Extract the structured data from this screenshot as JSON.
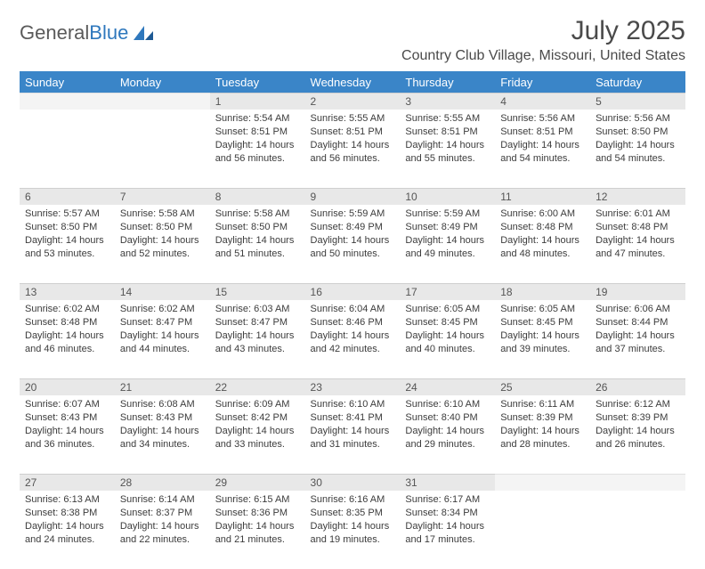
{
  "logo": {
    "text1": "General",
    "text2": "Blue"
  },
  "title": "July 2025",
  "location": "Country Club Village, Missouri, United States",
  "colors": {
    "header_bg": "#3a85c8",
    "header_text": "#ffffff",
    "daynum_bg": "#e8e8e8",
    "daynum_empty_bg": "#f4f4f4",
    "body_text": "#3c3c3c",
    "title_text": "#4a4a4a",
    "logo_gray": "#5a5a5a",
    "logo_blue": "#2f78bd"
  },
  "typography": {
    "title_fontsize": 30,
    "location_fontsize": 16,
    "header_fontsize": 13,
    "daynum_fontsize": 12,
    "cell_fontsize": 11
  },
  "weekdays": [
    "Sunday",
    "Monday",
    "Tuesday",
    "Wednesday",
    "Thursday",
    "Friday",
    "Saturday"
  ],
  "weeks": [
    [
      {
        "day": "",
        "sunrise": "",
        "sunset": "",
        "daylight": ""
      },
      {
        "day": "",
        "sunrise": "",
        "sunset": "",
        "daylight": ""
      },
      {
        "day": "1",
        "sunrise": "Sunrise: 5:54 AM",
        "sunset": "Sunset: 8:51 PM",
        "daylight": "Daylight: 14 hours and 56 minutes."
      },
      {
        "day": "2",
        "sunrise": "Sunrise: 5:55 AM",
        "sunset": "Sunset: 8:51 PM",
        "daylight": "Daylight: 14 hours and 56 minutes."
      },
      {
        "day": "3",
        "sunrise": "Sunrise: 5:55 AM",
        "sunset": "Sunset: 8:51 PM",
        "daylight": "Daylight: 14 hours and 55 minutes."
      },
      {
        "day": "4",
        "sunrise": "Sunrise: 5:56 AM",
        "sunset": "Sunset: 8:51 PM",
        "daylight": "Daylight: 14 hours and 54 minutes."
      },
      {
        "day": "5",
        "sunrise": "Sunrise: 5:56 AM",
        "sunset": "Sunset: 8:50 PM",
        "daylight": "Daylight: 14 hours and 54 minutes."
      }
    ],
    [
      {
        "day": "6",
        "sunrise": "Sunrise: 5:57 AM",
        "sunset": "Sunset: 8:50 PM",
        "daylight": "Daylight: 14 hours and 53 minutes."
      },
      {
        "day": "7",
        "sunrise": "Sunrise: 5:58 AM",
        "sunset": "Sunset: 8:50 PM",
        "daylight": "Daylight: 14 hours and 52 minutes."
      },
      {
        "day": "8",
        "sunrise": "Sunrise: 5:58 AM",
        "sunset": "Sunset: 8:50 PM",
        "daylight": "Daylight: 14 hours and 51 minutes."
      },
      {
        "day": "9",
        "sunrise": "Sunrise: 5:59 AM",
        "sunset": "Sunset: 8:49 PM",
        "daylight": "Daylight: 14 hours and 50 minutes."
      },
      {
        "day": "10",
        "sunrise": "Sunrise: 5:59 AM",
        "sunset": "Sunset: 8:49 PM",
        "daylight": "Daylight: 14 hours and 49 minutes."
      },
      {
        "day": "11",
        "sunrise": "Sunrise: 6:00 AM",
        "sunset": "Sunset: 8:48 PM",
        "daylight": "Daylight: 14 hours and 48 minutes."
      },
      {
        "day": "12",
        "sunrise": "Sunrise: 6:01 AM",
        "sunset": "Sunset: 8:48 PM",
        "daylight": "Daylight: 14 hours and 47 minutes."
      }
    ],
    [
      {
        "day": "13",
        "sunrise": "Sunrise: 6:02 AM",
        "sunset": "Sunset: 8:48 PM",
        "daylight": "Daylight: 14 hours and 46 minutes."
      },
      {
        "day": "14",
        "sunrise": "Sunrise: 6:02 AM",
        "sunset": "Sunset: 8:47 PM",
        "daylight": "Daylight: 14 hours and 44 minutes."
      },
      {
        "day": "15",
        "sunrise": "Sunrise: 6:03 AM",
        "sunset": "Sunset: 8:47 PM",
        "daylight": "Daylight: 14 hours and 43 minutes."
      },
      {
        "day": "16",
        "sunrise": "Sunrise: 6:04 AM",
        "sunset": "Sunset: 8:46 PM",
        "daylight": "Daylight: 14 hours and 42 minutes."
      },
      {
        "day": "17",
        "sunrise": "Sunrise: 6:05 AM",
        "sunset": "Sunset: 8:45 PM",
        "daylight": "Daylight: 14 hours and 40 minutes."
      },
      {
        "day": "18",
        "sunrise": "Sunrise: 6:05 AM",
        "sunset": "Sunset: 8:45 PM",
        "daylight": "Daylight: 14 hours and 39 minutes."
      },
      {
        "day": "19",
        "sunrise": "Sunrise: 6:06 AM",
        "sunset": "Sunset: 8:44 PM",
        "daylight": "Daylight: 14 hours and 37 minutes."
      }
    ],
    [
      {
        "day": "20",
        "sunrise": "Sunrise: 6:07 AM",
        "sunset": "Sunset: 8:43 PM",
        "daylight": "Daylight: 14 hours and 36 minutes."
      },
      {
        "day": "21",
        "sunrise": "Sunrise: 6:08 AM",
        "sunset": "Sunset: 8:43 PM",
        "daylight": "Daylight: 14 hours and 34 minutes."
      },
      {
        "day": "22",
        "sunrise": "Sunrise: 6:09 AM",
        "sunset": "Sunset: 8:42 PM",
        "daylight": "Daylight: 14 hours and 33 minutes."
      },
      {
        "day": "23",
        "sunrise": "Sunrise: 6:10 AM",
        "sunset": "Sunset: 8:41 PM",
        "daylight": "Daylight: 14 hours and 31 minutes."
      },
      {
        "day": "24",
        "sunrise": "Sunrise: 6:10 AM",
        "sunset": "Sunset: 8:40 PM",
        "daylight": "Daylight: 14 hours and 29 minutes."
      },
      {
        "day": "25",
        "sunrise": "Sunrise: 6:11 AM",
        "sunset": "Sunset: 8:39 PM",
        "daylight": "Daylight: 14 hours and 28 minutes."
      },
      {
        "day": "26",
        "sunrise": "Sunrise: 6:12 AM",
        "sunset": "Sunset: 8:39 PM",
        "daylight": "Daylight: 14 hours and 26 minutes."
      }
    ],
    [
      {
        "day": "27",
        "sunrise": "Sunrise: 6:13 AM",
        "sunset": "Sunset: 8:38 PM",
        "daylight": "Daylight: 14 hours and 24 minutes."
      },
      {
        "day": "28",
        "sunrise": "Sunrise: 6:14 AM",
        "sunset": "Sunset: 8:37 PM",
        "daylight": "Daylight: 14 hours and 22 minutes."
      },
      {
        "day": "29",
        "sunrise": "Sunrise: 6:15 AM",
        "sunset": "Sunset: 8:36 PM",
        "daylight": "Daylight: 14 hours and 21 minutes."
      },
      {
        "day": "30",
        "sunrise": "Sunrise: 6:16 AM",
        "sunset": "Sunset: 8:35 PM",
        "daylight": "Daylight: 14 hours and 19 minutes."
      },
      {
        "day": "31",
        "sunrise": "Sunrise: 6:17 AM",
        "sunset": "Sunset: 8:34 PM",
        "daylight": "Daylight: 14 hours and 17 minutes."
      },
      {
        "day": "",
        "sunrise": "",
        "sunset": "",
        "daylight": ""
      },
      {
        "day": "",
        "sunrise": "",
        "sunset": "",
        "daylight": ""
      }
    ]
  ]
}
